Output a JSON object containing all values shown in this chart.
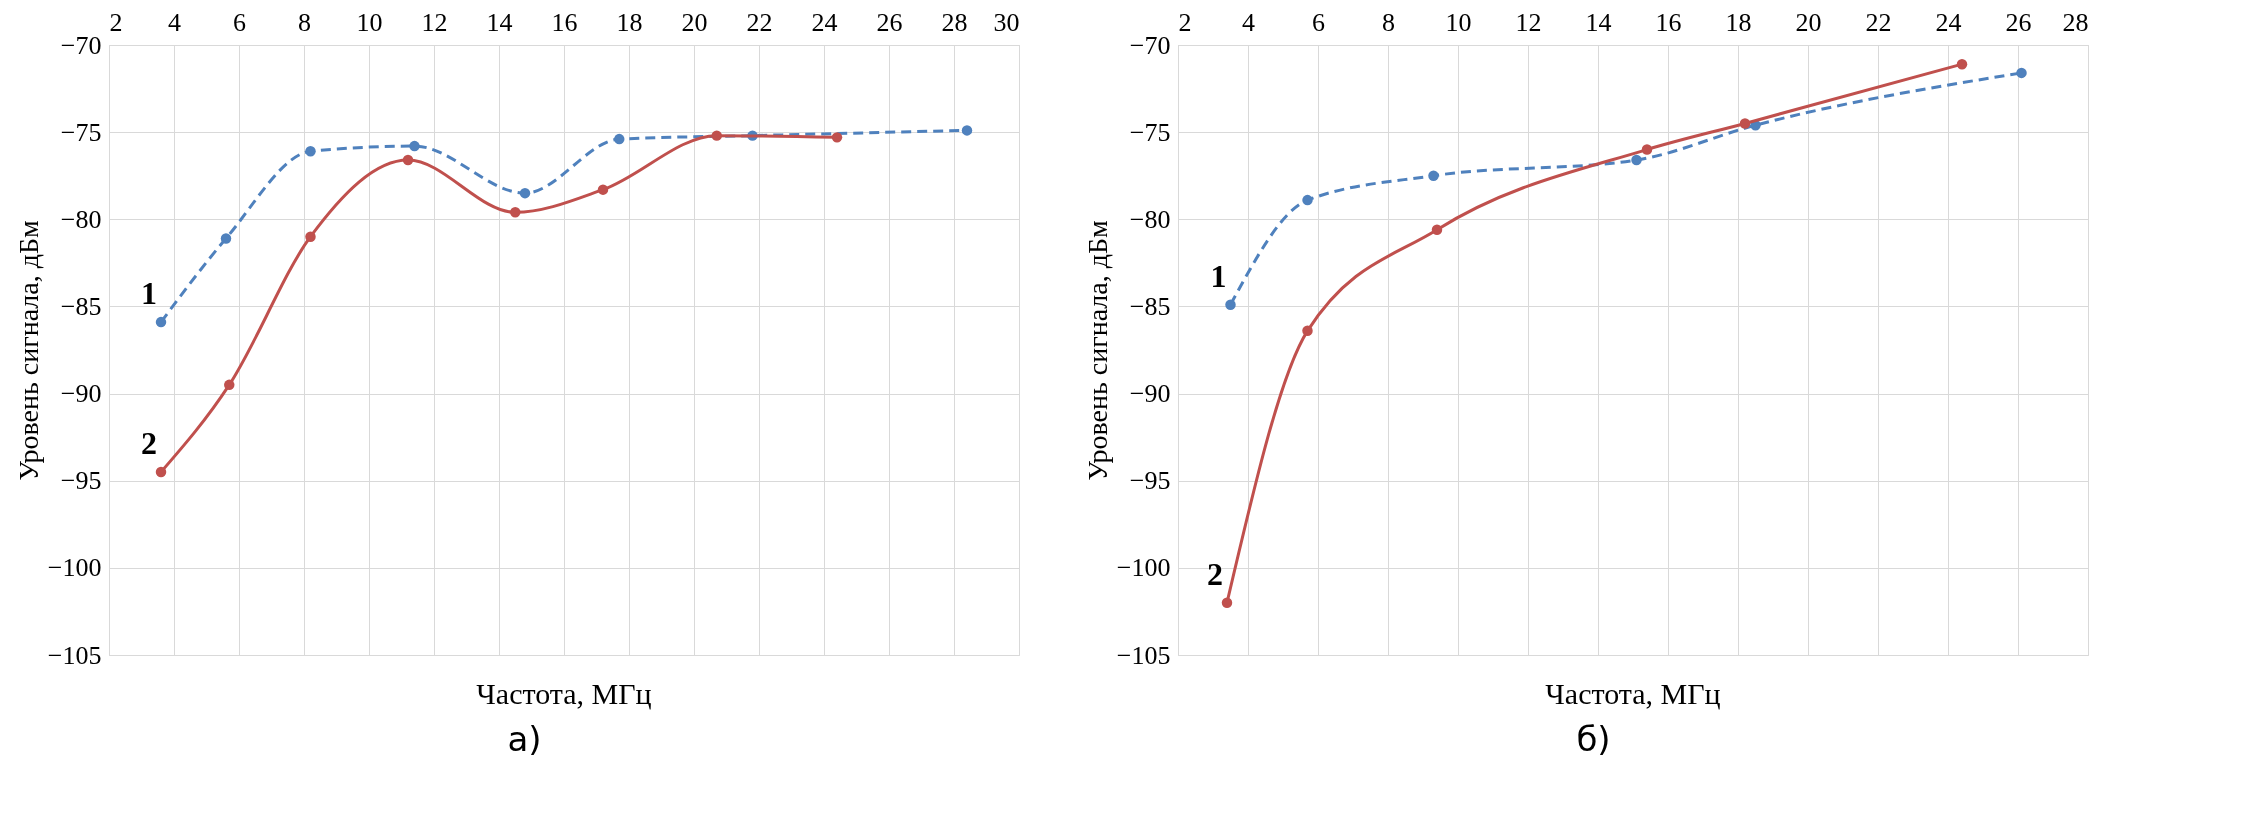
{
  "chart_data": [
    {
      "type": "line",
      "xlabel": "Частота, МГц",
      "ylabel": "Уровень сигнала, дБм",
      "xlim": [
        2,
        30
      ],
      "xticks": [
        2,
        4,
        6,
        8,
        10,
        12,
        14,
        16,
        18,
        20,
        22,
        24,
        26,
        28,
        30
      ],
      "ylim": [
        -105,
        -70
      ],
      "yticks": [
        -105,
        -100,
        -95,
        -90,
        -85,
        -80,
        -75,
        -70
      ],
      "grid": true,
      "marker": "circle",
      "annotations": [
        "а)"
      ],
      "series": [
        {
          "name": "1",
          "color": "#4f81bd",
          "line_style": "dashed",
          "x": [
            3.6,
            5.6,
            8.2,
            11.4,
            14.8,
            17.7,
            21.8,
            28.4
          ],
          "values": [
            -85.9,
            -81.1,
            -76.1,
            -75.8,
            -78.5,
            -75.4,
            -75.2,
            -74.9
          ]
        },
        {
          "name": "2",
          "color": "#c0504d",
          "line_style": "solid",
          "x": [
            3.6,
            5.7,
            8.2,
            11.2,
            14.5,
            17.2,
            20.7,
            24.4
          ],
          "values": [
            -94.5,
            -89.5,
            -81,
            -76.6,
            -79.6,
            -78.3,
            -75.2,
            -75.3
          ]
        }
      ]
    },
    {
      "type": "line",
      "xlabel": "Частота, МГц",
      "ylabel": "Уровень сигнала, дБм",
      "xlim": [
        2,
        28
      ],
      "xticks": [
        2,
        4,
        6,
        8,
        10,
        12,
        14,
        16,
        18,
        20,
        22,
        24,
        26,
        28
      ],
      "ylim": [
        -105,
        -70
      ],
      "yticks": [
        -105,
        -100,
        -95,
        -90,
        -85,
        -80,
        -75,
        -70
      ],
      "grid": true,
      "marker": "circle",
      "annotations": [
        "б)"
      ],
      "series": [
        {
          "name": "1",
          "color": "#4f81bd",
          "line_style": "dashed",
          "x": [
            3.5,
            5.7,
            9.3,
            15.1,
            18.5,
            26.1
          ],
          "values": [
            -84.9,
            -78.9,
            -77.5,
            -76.6,
            -74.6,
            -71.6
          ]
        },
        {
          "name": "2",
          "color": "#c0504d",
          "line_style": "solid",
          "x": [
            3.4,
            5.7,
            9.4,
            15.4,
            18.2,
            24.4
          ],
          "values": [
            -102,
            -86.4,
            -80.6,
            -76,
            -74.5,
            -71.1
          ]
        }
      ]
    }
  ]
}
